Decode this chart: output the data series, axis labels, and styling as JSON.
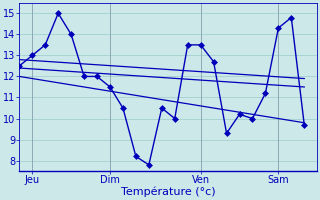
{
  "background_color": "#cce8e8",
  "grid_color": "#99cccc",
  "line_color": "#0000bb",
  "xlabel": "Température (°c)",
  "ylim": [
    7.5,
    15.5
  ],
  "yticks": [
    8,
    9,
    10,
    11,
    12,
    13,
    14,
    15
  ],
  "day_labels": [
    "Jeu",
    "Dim",
    "Ven",
    "Sam"
  ],
  "day_positions": [
    1,
    7,
    14,
    20
  ],
  "xlim": [
    0,
    23
  ],
  "main_x": [
    0,
    1,
    2,
    3,
    4,
    5,
    6,
    7,
    8,
    9,
    10,
    11,
    12,
    13,
    14,
    15,
    16,
    17,
    18,
    19,
    20,
    21,
    22
  ],
  "main_y": [
    12.5,
    13.0,
    13.5,
    15.0,
    14.0,
    12.0,
    12.0,
    11.5,
    10.5,
    8.2,
    7.8,
    10.5,
    10.0,
    13.5,
    13.5,
    12.7,
    9.3,
    10.2,
    10.0,
    11.2,
    14.3,
    14.8,
    9.7
  ],
  "trend_lines": [
    [
      12.8,
      11.9
    ],
    [
      12.4,
      11.5
    ],
    [
      12.0,
      9.8
    ]
  ],
  "trend_x": [
    0,
    22
  ],
  "ylabel_fontsize": 7,
  "tick_fontsize": 7,
  "figsize": [
    3.2,
    2.0
  ],
  "dpi": 100
}
